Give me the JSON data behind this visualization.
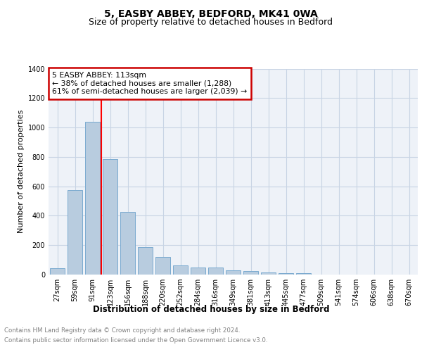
{
  "title": "5, EASBY ABBEY, BEDFORD, MK41 0WA",
  "subtitle": "Size of property relative to detached houses in Bedford",
  "xlabel": "Distribution of detached houses by size in Bedford",
  "ylabel": "Number of detached properties",
  "categories": [
    "27sqm",
    "59sqm",
    "91sqm",
    "123sqm",
    "156sqm",
    "188sqm",
    "220sqm",
    "252sqm",
    "284sqm",
    "316sqm",
    "349sqm",
    "381sqm",
    "413sqm",
    "445sqm",
    "477sqm",
    "509sqm",
    "541sqm",
    "574sqm",
    "606sqm",
    "638sqm",
    "670sqm"
  ],
  "values": [
    45,
    575,
    1040,
    785,
    425,
    185,
    120,
    60,
    50,
    50,
    30,
    25,
    15,
    10,
    10,
    0,
    0,
    0,
    0,
    0,
    0
  ],
  "bar_color": "#b8ccdf",
  "bar_edge_color": "#7aaad0",
  "redline_x": 2.5,
  "annotation_line1": "5 EASBY ABBEY: 113sqm",
  "annotation_line2": "← 38% of detached houses are smaller (1,288)",
  "annotation_line3": "61% of semi-detached houses are larger (2,039) →",
  "annotation_box_color": "#cc0000",
  "ylim": [
    0,
    1400
  ],
  "yticks": [
    0,
    200,
    400,
    600,
    800,
    1000,
    1200,
    1400
  ],
  "grid_color": "#c8d4e4",
  "background_color": "#eef2f8",
  "footer_line1": "Contains HM Land Registry data © Crown copyright and database right 2024.",
  "footer_line2": "Contains public sector information licensed under the Open Government Licence v3.0.",
  "title_fontsize": 10,
  "subtitle_fontsize": 9,
  "axis_label_fontsize": 8.5,
  "tick_fontsize": 7,
  "ylabel_fontsize": 8
}
